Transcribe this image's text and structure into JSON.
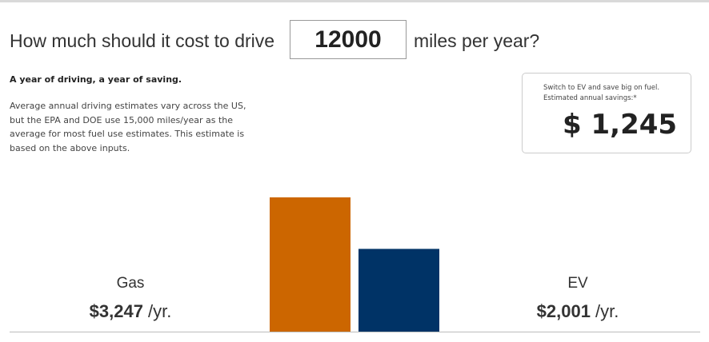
{
  "header": {
    "before": "How much should it cost to drive",
    "miles_input": "12000",
    "after": "miles per year?"
  },
  "intro": {
    "heading": "A year of driving, a year of saving.",
    "lines": [
      "Average annual driving estimates vary across the US,",
      "but the EPA and DOE use 15,000 miles/year as the",
      "average for most fuel use estimates. This estimate is",
      "based on the above inputs."
    ]
  },
  "savings": {
    "line1": "Switch to EV and save big on fuel.",
    "line2": "Estimated annual savings:*",
    "amount": "$ 1,245"
  },
  "chart_data": {
    "type": "bar",
    "categories": [
      "Gas",
      "EV"
    ],
    "values": [
      3247,
      2001
    ],
    "value_labels": [
      "$3,247",
      "$2,001"
    ],
    "unit": "/yr.",
    "colors": [
      "#cc6600",
      "#003366"
    ]
  }
}
